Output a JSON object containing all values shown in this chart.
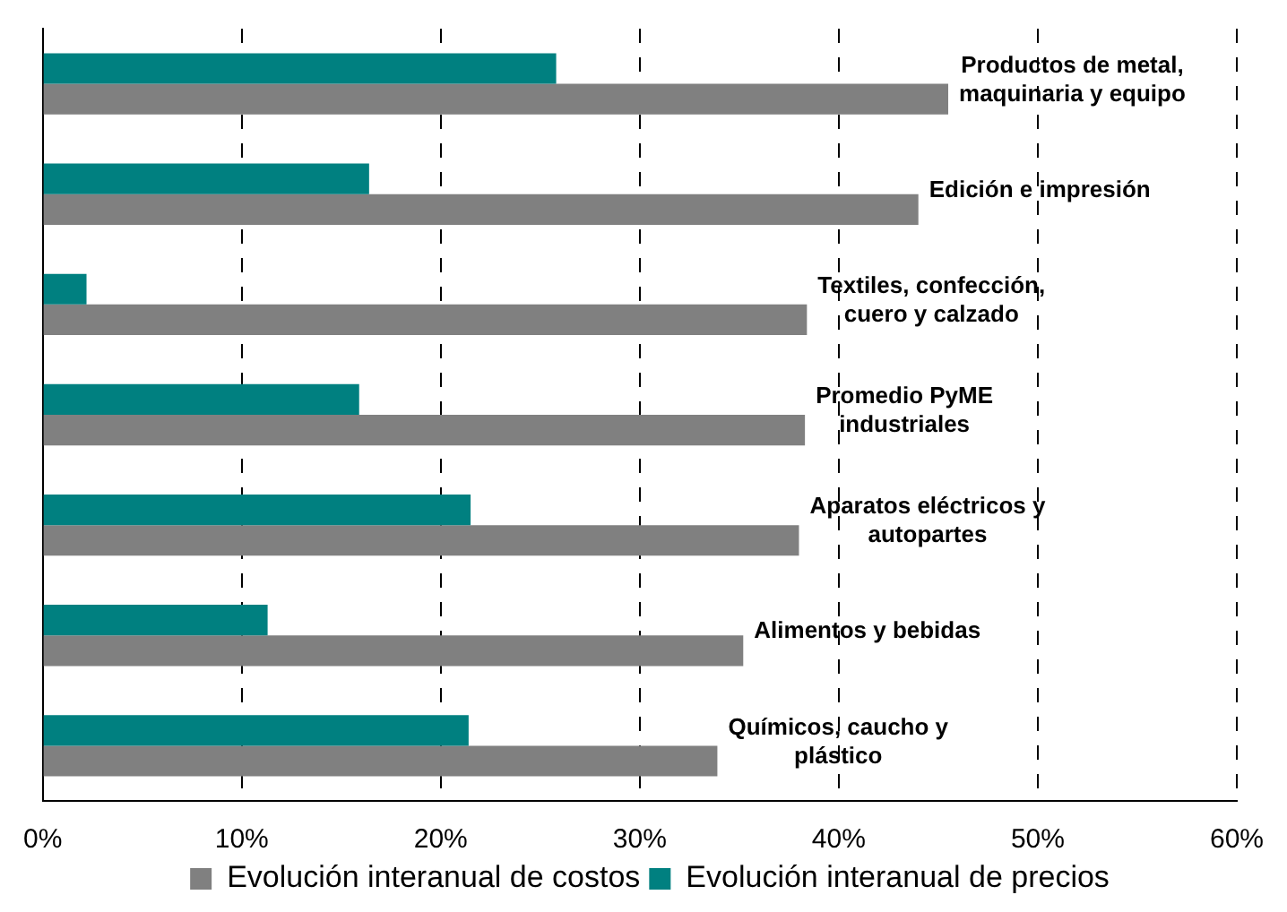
{
  "chart_data": {
    "type": "bar",
    "orientation": "horizontal",
    "categories": [
      "Productos de metal, maquinaria y equipo",
      "Edición e impresión",
      "Textiles, confección, cuero y calzado",
      "Promedio PyME industriales",
      "Aparatos eléctricos y autopartes",
      "Alimentos y bebidas",
      "Químicos, caucho y plástico"
    ],
    "series": [
      {
        "name": "Evolución interanual de costos",
        "color": "#808080",
        "values": [
          45.5,
          44.0,
          38.4,
          38.3,
          38.0,
          35.2,
          33.9
        ]
      },
      {
        "name": "Evolución interanual de precios",
        "color": "#008080",
        "values": [
          25.8,
          16.4,
          2.2,
          15.9,
          21.5,
          11.3,
          21.4
        ]
      }
    ],
    "xlim": [
      0,
      60
    ],
    "xticks": [
      {
        "value": 0,
        "label": "0%"
      },
      {
        "value": 10,
        "label": "10%"
      },
      {
        "value": 20,
        "label": "20%"
      },
      {
        "value": 30,
        "label": "30%"
      },
      {
        "value": 40,
        "label": "40%"
      },
      {
        "value": 50,
        "label": "50%"
      },
      {
        "value": 60,
        "label": "60%"
      }
    ],
    "grid": "x",
    "legend": "bottom"
  }
}
